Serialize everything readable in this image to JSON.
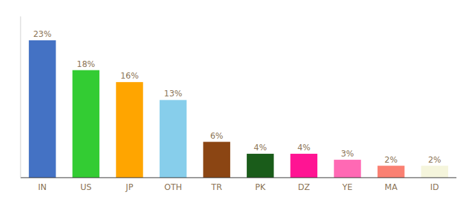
{
  "chart_data": {
    "type": "bar",
    "categories": [
      "IN",
      "US",
      "JP",
      "OTH",
      "TR",
      "PK",
      "DZ",
      "YE",
      "MA",
      "ID"
    ],
    "values": [
      23,
      18,
      16,
      13,
      6,
      4,
      4,
      3,
      2,
      2
    ],
    "value_labels": [
      "23%",
      "18%",
      "16%",
      "13%",
      "6%",
      "4%",
      "4%",
      "3%",
      "2%",
      "2%"
    ],
    "colors": [
      "#4472C4",
      "#33CC33",
      "#FFA500",
      "#87CEEB",
      "#8B4513",
      "#1A5C1A",
      "#FF1493",
      "#FF69B4",
      "#FA8072",
      "#F5F5DC"
    ],
    "ylim": [
      0,
      27
    ],
    "data_labels": true,
    "tick_labels": "x",
    "grid": false
  }
}
